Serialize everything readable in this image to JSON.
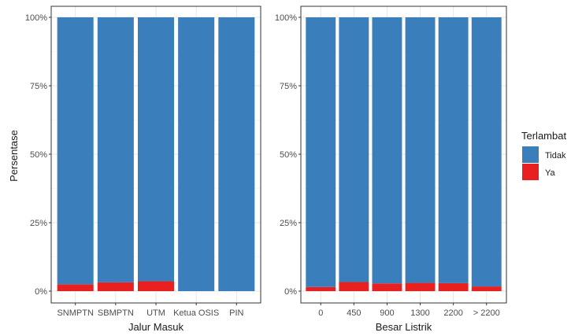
{
  "ylabel": "Persentase",
  "legend": {
    "title": "Terlambat",
    "position": "right",
    "items": [
      {
        "label": "Tidak",
        "color": "#3A7FBC"
      },
      {
        "label": "Ya",
        "color": "#E8201F"
      }
    ]
  },
  "chart_data": [
    {
      "type": "bar",
      "stacked": true,
      "xlabel": "Jalur Masuk",
      "ylabel": "Persentase",
      "ylim": [
        0,
        100
      ],
      "yticks": [
        "0%",
        "25%",
        "50%",
        "75%",
        "100%"
      ],
      "categories": [
        "SNMPTN",
        "SBMPTN",
        "UTM",
        "Ketua OSIS",
        "PIN"
      ],
      "series": [
        {
          "name": "Ya",
          "color": "#E8201F",
          "values": [
            2.5,
            3.2,
            3.6,
            0,
            0
          ]
        },
        {
          "name": "Tidak",
          "color": "#3A7FBC",
          "values": [
            97.5,
            96.8,
            96.4,
            100,
            100
          ]
        }
      ],
      "grid": true
    },
    {
      "type": "bar",
      "stacked": true,
      "xlabel": "Besar Listrik",
      "ylabel": "",
      "ylim": [
        0,
        100
      ],
      "yticks": [
        "0%",
        "25%",
        "50%",
        "75%",
        "100%"
      ],
      "categories": [
        "0",
        "450",
        "900",
        "1300",
        "2200",
        "> 2200"
      ],
      "series": [
        {
          "name": "Ya",
          "color": "#E8201F",
          "values": [
            1.5,
            3.3,
            2.8,
            3.0,
            2.9,
            1.7
          ]
        },
        {
          "name": "Tidak",
          "color": "#3A7FBC",
          "values": [
            98.5,
            96.7,
            97.2,
            97.0,
            97.1,
            98.3
          ]
        }
      ],
      "grid": true
    }
  ]
}
